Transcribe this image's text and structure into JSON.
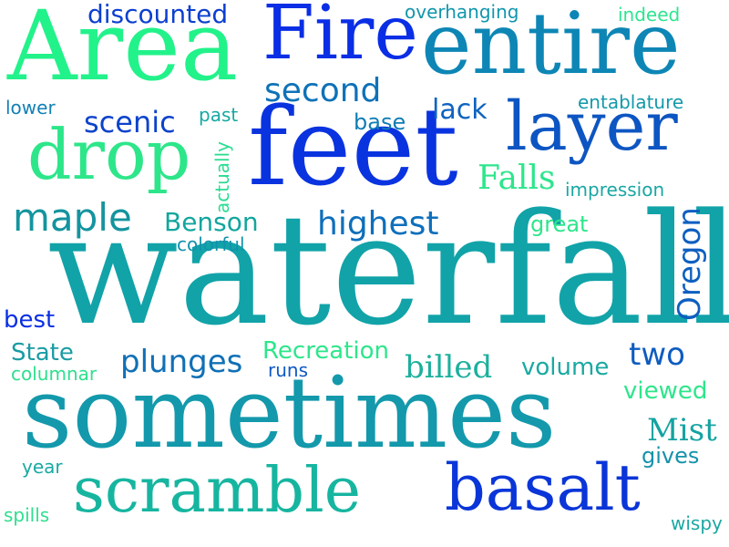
{
  "word_cloud": {
    "words": [
      {
        "text": "waterfall",
        "color": "#11a3a8"
      },
      {
        "text": "sometimes",
        "color": "#1399ab"
      },
      {
        "text": "feet",
        "color": "#0a33e0"
      },
      {
        "text": "Area",
        "color": "#22f28a"
      },
      {
        "text": "entire",
        "color": "#0d86b5"
      },
      {
        "text": "Fire",
        "color": "#0a2ee5"
      },
      {
        "text": "drop",
        "color": "#2de68a"
      },
      {
        "text": "layer",
        "color": "#0d55c2"
      },
      {
        "text": "scramble",
        "color": "#16b5a0"
      },
      {
        "text": "basalt",
        "color": "#0a35d8"
      },
      {
        "text": "discounted",
        "color": "#0c3fd0"
      },
      {
        "text": "overhanging",
        "color": "#1196ac"
      },
      {
        "text": "indeed",
        "color": "#2de58f"
      },
      {
        "text": "second",
        "color": "#0e72b8"
      },
      {
        "text": "lower",
        "color": "#1380b5"
      },
      {
        "text": "scenic",
        "color": "#0c43cc"
      },
      {
        "text": "past",
        "color": "#17a8a2"
      },
      {
        "text": "lack",
        "color": "#0e63bf"
      },
      {
        "text": "entablature",
        "color": "#1399aa"
      },
      {
        "text": "base",
        "color": "#0f7db5"
      },
      {
        "text": "actually",
        "color": "#2bdc92"
      },
      {
        "text": "Falls",
        "color": "#2de68c"
      },
      {
        "text": "impression",
        "color": "#1aa7a2"
      },
      {
        "text": "Oregon",
        "color": "#0d5fc0"
      },
      {
        "text": "maple",
        "color": "#14949e"
      },
      {
        "text": "Benson",
        "color": "#12a69e"
      },
      {
        "text": "highest",
        "color": "#0e6fbb"
      },
      {
        "text": "great",
        "color": "#2de68c"
      },
      {
        "text": "colorful",
        "color": "#1292ac"
      },
      {
        "text": "best",
        "color": "#0a2ee5"
      },
      {
        "text": "State",
        "color": "#1a9ca4"
      },
      {
        "text": "columnar",
        "color": "#2ddf8e"
      },
      {
        "text": "plunges",
        "color": "#1070b6"
      },
      {
        "text": "Recreation",
        "color": "#2ee68b"
      },
      {
        "text": "runs",
        "color": "#0e59c4"
      },
      {
        "text": "billed",
        "color": "#1cb09c"
      },
      {
        "text": "two",
        "color": "#0e5cc0"
      },
      {
        "text": "volume",
        "color": "#1aa9a2"
      },
      {
        "text": "viewed",
        "color": "#2de68c"
      },
      {
        "text": "Mist",
        "color": "#14a3a1"
      },
      {
        "text": "gives",
        "color": "#1592aa"
      },
      {
        "text": "year",
        "color": "#1aa9a2"
      },
      {
        "text": "spills",
        "color": "#2ddf8e"
      },
      {
        "text": "wispy",
        "color": "#1aa8a2"
      }
    ]
  }
}
